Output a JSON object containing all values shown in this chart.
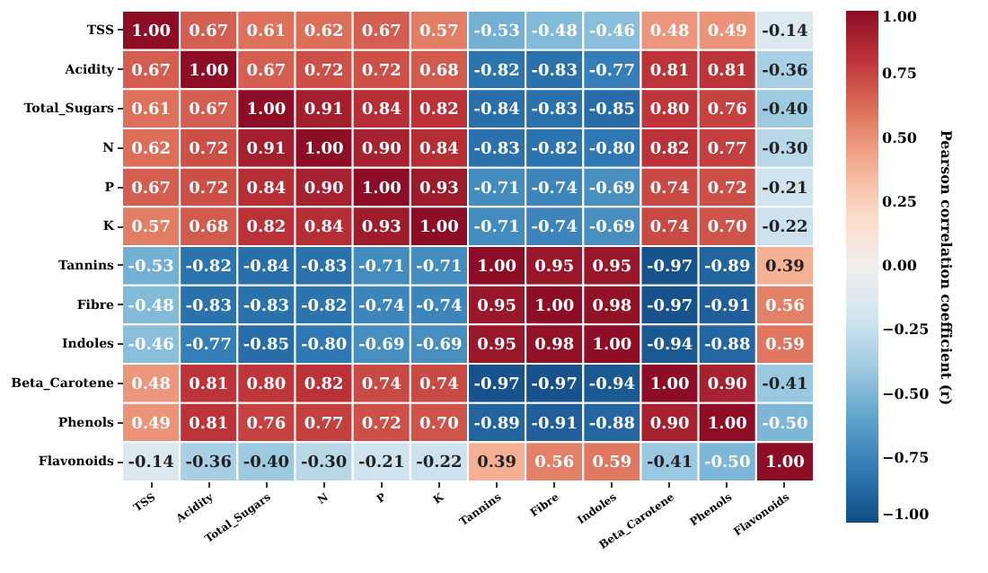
{
  "chart_data": {
    "type": "heatmap",
    "categories": [
      "TSS",
      "Acidity",
      "Total_Sugars",
      "N",
      "P",
      "K",
      "Tannins",
      "Fibre",
      "Indoles",
      "Beta_Carotene",
      "Phenols",
      "Flavonoids"
    ],
    "y_categories": [
      "TSS",
      "Acidity",
      "Total_Sugars",
      "N",
      "P",
      "K",
      "Tannins",
      "Fibre",
      "Indoles",
      "Beta_Carotene",
      "Phenols",
      "Flavonoids"
    ],
    "cells": [
      [
        1.0,
        0.67,
        0.61,
        0.62,
        0.67,
        0.57,
        -0.53,
        -0.48,
        -0.46,
        0.48,
        0.49,
        -0.14
      ],
      [
        0.67,
        1.0,
        0.67,
        0.72,
        0.72,
        0.68,
        -0.82,
        -0.83,
        -0.77,
        0.81,
        0.81,
        -0.36
      ],
      [
        0.61,
        0.67,
        1.0,
        0.91,
        0.84,
        0.82,
        -0.84,
        -0.83,
        -0.85,
        0.8,
        0.76,
        -0.4
      ],
      [
        0.62,
        0.72,
        0.91,
        1.0,
        0.9,
        0.84,
        -0.83,
        -0.82,
        -0.8,
        0.82,
        0.77,
        -0.3
      ],
      [
        0.67,
        0.72,
        0.84,
        0.9,
        1.0,
        0.93,
        -0.71,
        -0.74,
        -0.69,
        0.74,
        0.72,
        -0.21
      ],
      [
        0.57,
        0.68,
        0.82,
        0.84,
        0.93,
        1.0,
        -0.71,
        -0.74,
        -0.69,
        0.74,
        0.7,
        -0.22
      ],
      [
        -0.53,
        -0.82,
        -0.84,
        -0.83,
        -0.71,
        -0.71,
        1.0,
        0.95,
        0.95,
        -0.97,
        -0.89,
        0.39
      ],
      [
        -0.48,
        -0.83,
        -0.83,
        -0.82,
        -0.74,
        -0.74,
        0.95,
        1.0,
        0.98,
        -0.97,
        -0.91,
        0.56
      ],
      [
        -0.46,
        -0.77,
        -0.85,
        -0.8,
        -0.69,
        -0.69,
        0.95,
        0.98,
        1.0,
        -0.94,
        -0.88,
        0.59
      ],
      [
        0.48,
        0.81,
        0.8,
        0.82,
        0.74,
        0.74,
        -0.97,
        -0.97,
        -0.94,
        1.0,
        0.9,
        -0.41
      ],
      [
        0.49,
        0.81,
        0.76,
        0.77,
        0.72,
        0.7,
        -0.89,
        -0.91,
        -0.88,
        0.9,
        1.0,
        -0.5
      ],
      [
        -0.14,
        -0.36,
        -0.4,
        -0.3,
        -0.21,
        -0.22,
        0.39,
        0.56,
        0.59,
        -0.41,
        -0.5,
        1.0
      ]
    ],
    "cell_labels": [
      [
        "1.00",
        "0.67",
        "0.61",
        "0.62",
        "0.67",
        "0.57",
        "-0.53",
        "-0.48",
        "-0.46",
        "0.48",
        "0.49",
        "-0.14"
      ],
      [
        "0.67",
        "1.00",
        "0.67",
        "0.72",
        "0.72",
        "0.68",
        "-0.82",
        "-0.83",
        "-0.77",
        "0.81",
        "0.81",
        "-0.36"
      ],
      [
        "0.61",
        "0.67",
        "1.00",
        "0.91",
        "0.84",
        "0.82",
        "-0.84",
        "-0.83",
        "-0.85",
        "0.80",
        "0.76",
        "-0.40"
      ],
      [
        "0.62",
        "0.72",
        "0.91",
        "1.00",
        "0.90",
        "0.84",
        "-0.83",
        "-0.82",
        "-0.80",
        "0.82",
        "0.77",
        "-0.30"
      ],
      [
        "0.67",
        "0.72",
        "0.84",
        "0.90",
        "1.00",
        "0.93",
        "-0.71",
        "-0.74",
        "-0.69",
        "0.74",
        "0.72",
        "-0.21"
      ],
      [
        "0.57",
        "0.68",
        "0.82",
        "0.84",
        "0.93",
        "1.00",
        "-0.71",
        "-0.74",
        "-0.69",
        "0.74",
        "0.70",
        "-0.22"
      ],
      [
        "-0.53",
        "-0.82",
        "-0.84",
        "-0.83",
        "-0.71",
        "-0.71",
        "1.00",
        "0.95",
        "0.95",
        "-0.97",
        "-0.89",
        "0.39"
      ],
      [
        "-0.48",
        "-0.83",
        "-0.83",
        "-0.82",
        "-0.74",
        "-0.74",
        "0.95",
        "1.00",
        "0.98",
        "-0.97",
        "-0.91",
        "0.56"
      ],
      [
        "-0.46",
        "-0.77",
        "-0.85",
        "-0.80",
        "-0.69",
        "-0.69",
        "0.95",
        "0.98",
        "1.00",
        "-0.94",
        "-0.88",
        "0.59"
      ],
      [
        "0.48",
        "0.81",
        "0.80",
        "0.82",
        "0.74",
        "0.74",
        "-0.97",
        "-0.97",
        "-0.94",
        "1.00",
        "0.90",
        "-0.41"
      ],
      [
        "0.49",
        "0.81",
        "0.76",
        "0.77",
        "0.72",
        "0.70",
        "-0.89",
        "-0.91",
        "-0.88",
        "0.90",
        "1.00",
        "-0.50"
      ],
      [
        "-0.14",
        "-0.36",
        "-0.40",
        "-0.30",
        "-0.21",
        "-0.22",
        "0.39",
        "0.56",
        "0.59",
        "-0.41",
        "-0.50",
        "1.00"
      ]
    ],
    "clabel": "Pearson correlation coefficient (r)",
    "clim": [
      -1.0,
      1.0
    ],
    "cticks": [
      {
        "value": 1.0,
        "label": "1.00"
      },
      0.75,
      {
        "value": 0.5,
        "label": "0.50"
      },
      0.25,
      {
        "value": 0.0,
        "label": "0.00"
      },
      {
        "value": -0.25,
        "label": "−0.25"
      },
      {
        "value": -0.5,
        "label": "−0.50"
      },
      {
        "value": -0.75,
        "label": "−0.75"
      },
      {
        "value": -1.0,
        "label": "−1.00"
      }
    ]
  }
}
